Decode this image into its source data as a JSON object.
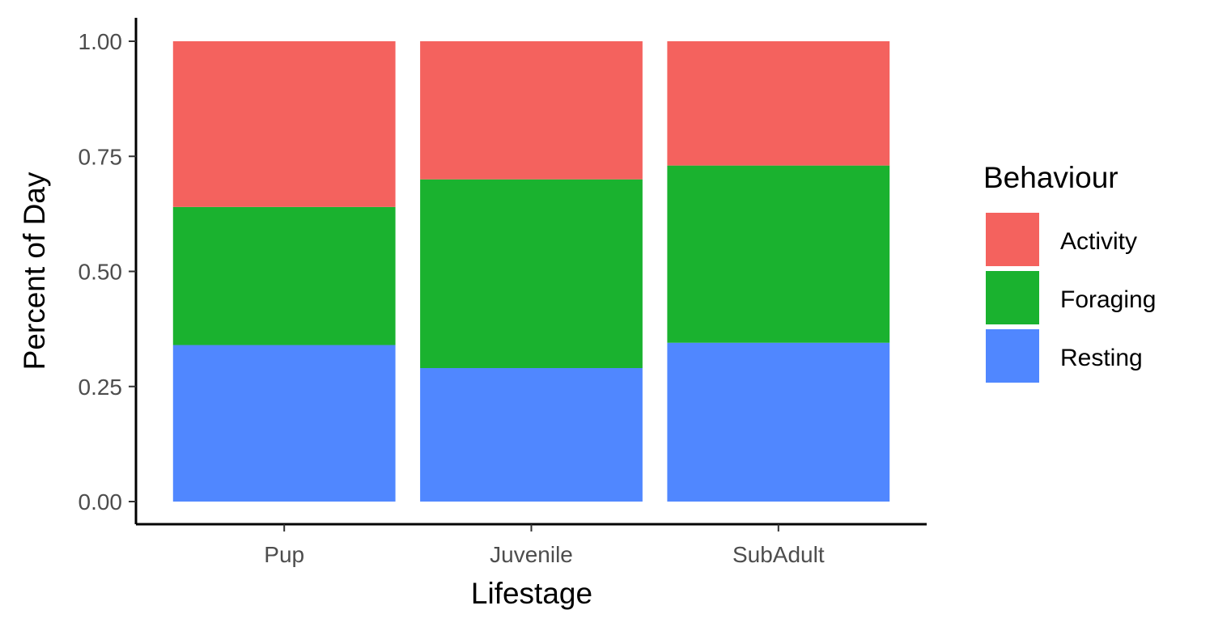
{
  "chart_data": {
    "type": "bar",
    "stacked": true,
    "categories": [
      "Pup",
      "Juvenile",
      "SubAdult"
    ],
    "series": [
      {
        "name": "Resting",
        "color": "#5087FF",
        "values": [
          0.34,
          0.29,
          0.345
        ]
      },
      {
        "name": "Foraging",
        "color": "#1AB22F",
        "values": [
          0.3,
          0.41,
          0.385
        ]
      },
      {
        "name": "Activity",
        "color": "#F4625E",
        "values": [
          0.36,
          0.3,
          0.27
        ]
      }
    ],
    "legend_order": [
      "Activity",
      "Foraging",
      "Resting"
    ],
    "title": "",
    "xlabel": "Lifestage",
    "ylabel": "Percent of Day",
    "legend_title": "Behaviour",
    "legend_position": "right",
    "ylim": [
      0,
      1
    ],
    "yticks": [
      0,
      0.25,
      0.5,
      0.75,
      1
    ],
    "ytick_labels": [
      "0.00",
      "0.25",
      "0.50",
      "0.75",
      "1.00"
    ],
    "grid": false
  }
}
